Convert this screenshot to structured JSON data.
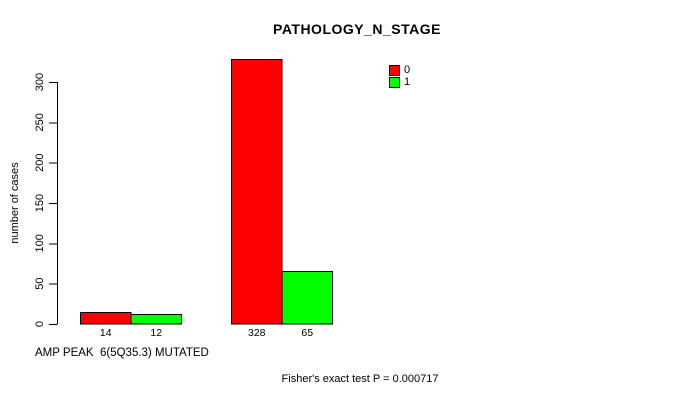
{
  "chart_data": {
    "type": "bar",
    "title": "PATHOLOGY_N_STAGE",
    "xlabel": "AMP PEAK  6(5Q35.3) MUTATED",
    "ylabel": "number of cases",
    "annotation": "Fisher's exact test P = 0.000717",
    "categories": [
      "",
      ""
    ],
    "series": [
      {
        "name": "0",
        "color": "#ff0000",
        "values": [
          14,
          328
        ]
      },
      {
        "name": "1",
        "color": "#00ff00",
        "values": [
          12,
          65
        ]
      }
    ],
    "yticks": [
      0,
      50,
      100,
      150,
      200,
      250,
      300
    ],
    "ylim": [
      0,
      300
    ],
    "grid": false,
    "bar_value_labels": true,
    "legend": {
      "position": "top-right",
      "entries": [
        "0",
        "1"
      ]
    },
    "colors": {
      "bar_border": "#000000",
      "axis": "#000000",
      "text": "#000000",
      "background": "#ffffff"
    }
  }
}
